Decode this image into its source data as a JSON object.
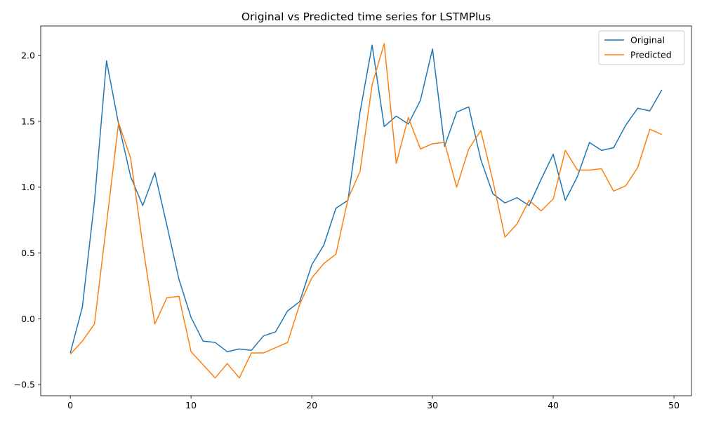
{
  "chart_data": {
    "type": "line",
    "title": "Original vs Predicted time series for LSTMPlus",
    "xlabel": "",
    "ylabel": "",
    "xlim": [
      -2.45,
      51.45
    ],
    "ylim": [
      -0.585,
      2.225
    ],
    "xticks": [
      0,
      10,
      20,
      30,
      40,
      50
    ],
    "xtick_labels": [
      "0",
      "10",
      "20",
      "30",
      "40",
      "50"
    ],
    "yticks": [
      -0.5,
      0.0,
      0.5,
      1.0,
      1.5,
      2.0
    ],
    "ytick_labels": [
      "−0.5",
      "0.0",
      "0.5",
      "1.0",
      "1.5",
      "2.0"
    ],
    "grid": false,
    "legend_position": "top-right",
    "x": [
      0,
      1,
      2,
      3,
      4,
      5,
      6,
      7,
      8,
      9,
      10,
      11,
      12,
      13,
      14,
      15,
      16,
      17,
      18,
      19,
      20,
      21,
      22,
      23,
      24,
      25,
      26,
      27,
      28,
      29,
      30,
      31,
      32,
      33,
      34,
      35,
      36,
      37,
      38,
      39,
      40,
      41,
      42,
      43,
      44,
      45,
      46,
      47,
      48,
      49
    ],
    "series": [
      {
        "name": "Original",
        "color": "#1f77b4",
        "values": [
          -0.26,
          0.09,
          0.89,
          1.96,
          1.48,
          1.08,
          0.86,
          1.11,
          0.71,
          0.3,
          0.01,
          -0.17,
          -0.18,
          -0.25,
          -0.23,
          -0.24,
          -0.13,
          -0.1,
          0.06,
          0.13,
          0.41,
          0.56,
          0.84,
          0.9,
          1.57,
          2.08,
          1.46,
          1.54,
          1.48,
          1.66,
          2.05,
          1.31,
          1.57,
          1.61,
          1.21,
          0.95,
          0.88,
          0.92,
          0.86,
          1.06,
          1.25,
          0.9,
          1.08,
          1.34,
          1.28,
          1.3,
          1.47,
          1.6,
          1.58,
          1.74
        ]
      },
      {
        "name": "Predicted",
        "color": "#ff7f0e",
        "values": [
          -0.27,
          -0.17,
          -0.04,
          0.72,
          1.49,
          1.22,
          0.56,
          -0.04,
          0.16,
          0.17,
          -0.25,
          -0.35,
          -0.45,
          -0.34,
          -0.45,
          -0.26,
          -0.26,
          -0.22,
          -0.18,
          0.11,
          0.31,
          0.42,
          0.49,
          0.91,
          1.12,
          1.78,
          2.09,
          1.18,
          1.53,
          1.29,
          1.33,
          1.34,
          1.0,
          1.29,
          1.43,
          1.05,
          0.62,
          0.72,
          0.9,
          0.82,
          0.91,
          1.28,
          1.13,
          1.13,
          1.14,
          0.97,
          1.01,
          1.15,
          1.44,
          1.4
        ]
      }
    ]
  }
}
